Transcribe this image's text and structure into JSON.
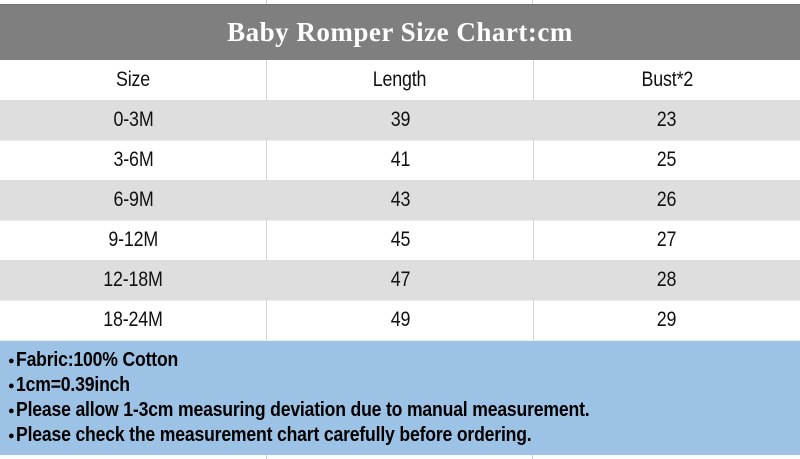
{
  "title": "Baby Romper Size Chart:cm",
  "chart_data": {
    "type": "table",
    "title": "Baby Romper Size Chart:cm",
    "unit": "cm",
    "columns": [
      "Size",
      "Length",
      "Bust*2"
    ],
    "rows": [
      [
        "0-3M",
        39,
        23
      ],
      [
        "3-6M",
        41,
        25
      ],
      [
        "6-9M",
        43,
        26
      ],
      [
        "9-12M",
        45,
        27
      ],
      [
        "12-18M",
        47,
        28
      ],
      [
        "18-24M",
        49,
        29
      ]
    ]
  },
  "notes": {
    "bullet": "●",
    "items": [
      "Fabric:100% Cotton",
      "1cm=0.39inch",
      "Please allow 1-3cm measuring deviation due to manual measurement.",
      "Please check the measurement chart carefully before ordering."
    ]
  },
  "colors": {
    "title_bar_bg": "#7f7f7f",
    "title_text": "#ffffff",
    "alt_row_bg": "#dedede",
    "row_bg": "#ffffff",
    "notes_bg": "#9cc2e5",
    "cell_border": "#d4d4d4",
    "text": "#000000"
  }
}
